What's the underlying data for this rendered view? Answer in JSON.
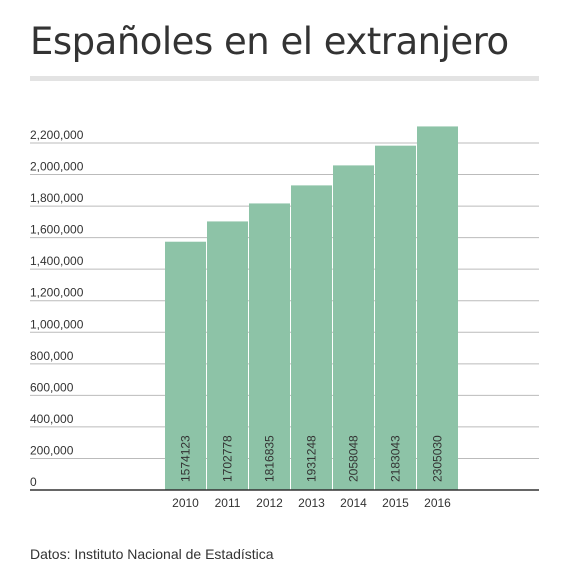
{
  "header": {
    "title": "Españoles en el extranjero"
  },
  "footer": {
    "source": "Datos: Instituto Nacional de Estadística"
  },
  "colors": {
    "bar": "#8dc3a7",
    "grid": "#bbbbbb",
    "axis": "#333333",
    "text": "#333333",
    "rule": "#e3e3e3"
  },
  "chart_data": {
    "type": "bar",
    "title": "Españoles en el extranjero",
    "xlabel": "",
    "ylabel": "",
    "categories": [
      "2010",
      "2011",
      "2012",
      "2013",
      "2014",
      "2015",
      "2016"
    ],
    "values": [
      1574123,
      1702778,
      1816835,
      1931248,
      2058048,
      2183043,
      2305030
    ],
    "data_labels": [
      "1574123",
      "1702778",
      "1816835",
      "1931248",
      "2058048",
      "2183043",
      "2305030"
    ],
    "ylim": [
      0,
      2200000
    ],
    "yticks": [
      0,
      200000,
      400000,
      600000,
      800000,
      1000000,
      1200000,
      1400000,
      1600000,
      1800000,
      2000000,
      2200000
    ],
    "ytick_labels": [
      "0",
      "200,000",
      "400,000",
      "600,000",
      "800,000",
      "1,000,000",
      "1,200,000",
      "1,400,000",
      "1,600,000",
      "1,800,000",
      "2,000,000",
      "2,200,000"
    ],
    "grid": true,
    "legend": "none"
  }
}
